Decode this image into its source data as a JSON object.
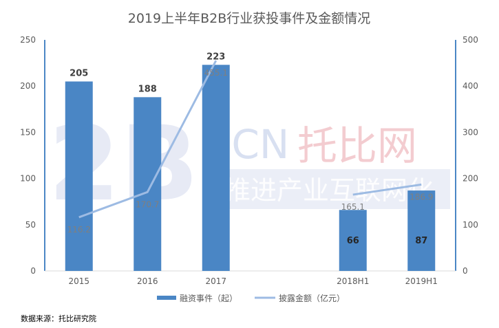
{
  "chart_data": {
    "type": "bar",
    "title": "2019上半年B2B行业获投事件及金额情况",
    "categories": [
      "2015",
      "2016",
      "2017",
      "",
      "2018H1",
      "2019H1"
    ],
    "series": [
      {
        "name": "融资事件（起）",
        "kind": "bar",
        "axis": "left",
        "color": "#4a86c5",
        "values": [
          205,
          188,
          223,
          null,
          66,
          87
        ]
      },
      {
        "name": "披露金额（亿元）",
        "kind": "line",
        "axis": "right",
        "color": "#9dbbe3",
        "values": [
          116.2,
          170.7,
          455.1,
          null,
          165.1,
          186.9
        ]
      }
    ],
    "ylim_left": [
      0,
      250
    ],
    "yticks_left": [
      0,
      50,
      100,
      150,
      200,
      250
    ],
    "ylim_right": [
      0,
      500
    ],
    "yticks_right": [
      0,
      100,
      200,
      300,
      400,
      500
    ],
    "legend_position": "bottom",
    "grid": false
  },
  "watermark": {
    "big": "2B",
    "cn": ".CN",
    "brand": "托比网",
    "slogan": "推进产业互联网化"
  },
  "source_note": "数据来源：托比研究院"
}
